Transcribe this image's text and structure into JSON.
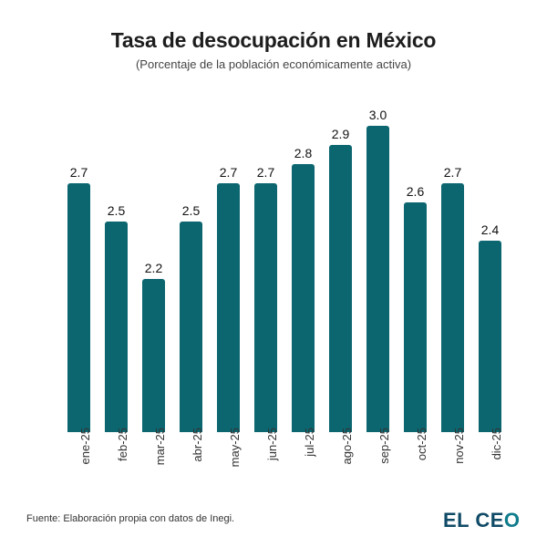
{
  "header": {
    "title": "Tasa de desocupación en México",
    "subtitle": "(Porcentaje de la población económicamente activa)"
  },
  "footer": {
    "source": "Fuente: Elaboración propia con datos de Inegi.",
    "logo_main": "EL CE",
    "logo_accent": "O"
  },
  "colors": {
    "bar": "#0b6670",
    "logo": "#0f4a66",
    "logo_accent": "#0f7c8c"
  },
  "chart_data": {
    "type": "bar",
    "title": "Tasa de desocupación en México",
    "subtitle": "(Porcentaje de la población económicamente activa)",
    "xlabel": "",
    "ylabel": "",
    "categories": [
      "ene-25",
      "feb-25",
      "mar-25",
      "abr-25",
      "may-25",
      "jun-25",
      "jul-25",
      "ago-25",
      "sep-25",
      "oct-25",
      "nov-25",
      "dic-25"
    ],
    "values": [
      2.7,
      2.5,
      2.2,
      2.5,
      2.7,
      2.7,
      2.8,
      2.9,
      3.0,
      2.6,
      2.7,
      2.4
    ],
    "value_labels": [
      "2.7",
      "2.5",
      "2.2",
      "2.5",
      "2.7",
      "2.7",
      "2.8",
      "2.9",
      "3.0",
      "2.6",
      "2.7",
      "2.4"
    ],
    "ylim": [
      1.4,
      3.0
    ],
    "grid": false,
    "legend": null,
    "data_labels": true,
    "source": "Fuente: Elaboración propia con datos de Inegi."
  }
}
